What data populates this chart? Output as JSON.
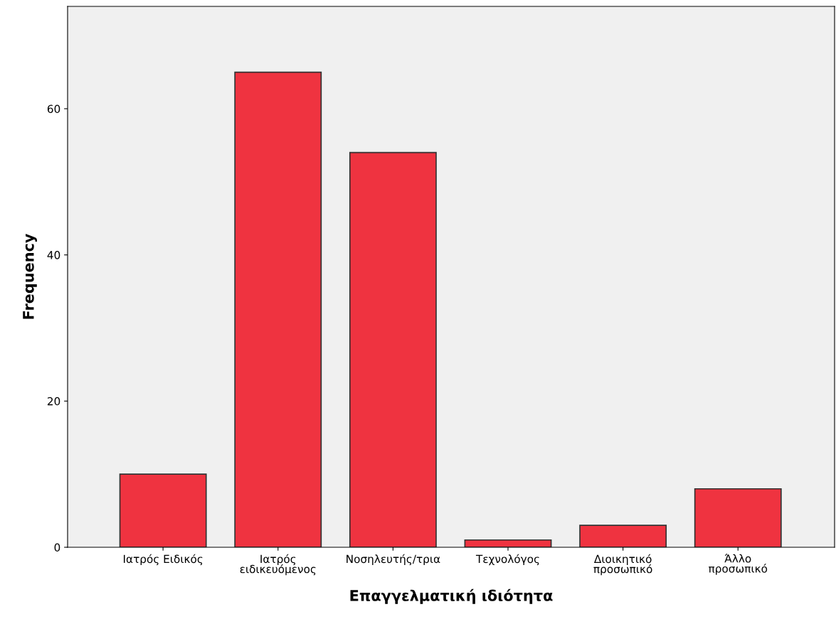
{
  "chart_data": {
    "type": "bar",
    "xlabel": "Επαγγελματική ιδιότητα",
    "ylabel": "Frequency",
    "categories": [
      "Ιατρός Ειδικός",
      "Ιατρός\nειδικευόμενος",
      "Νοσηλευτής/τρια",
      "Τεχνολόγος",
      "Διοικητικό\nπροσωπικό",
      "Άλλο\nπροσωπικό"
    ],
    "values": [
      10,
      65,
      54,
      1,
      3,
      8
    ],
    "color": "#ef3340",
    "ylim": [
      0,
      74
    ],
    "yticks": [
      0,
      20,
      40,
      60
    ],
    "grid": false
  }
}
